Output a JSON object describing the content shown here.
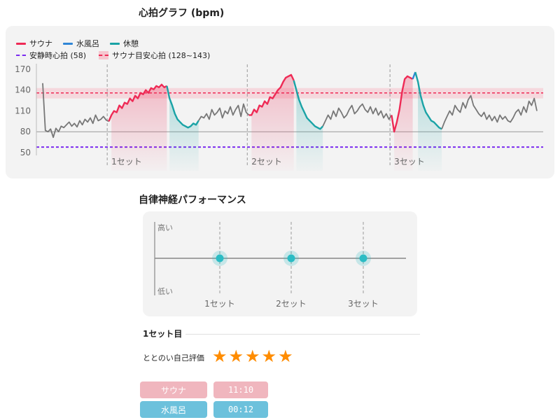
{
  "hr_chart_title": "心拍グラフ (bpm)",
  "ans_chart_title": "自律神経パフォーマンス",
  "colors": {
    "sauna": "#ee2a55",
    "cold_bath": "#2f86d6",
    "rest": "#1aa3a6",
    "resting_line": "#7b2cf0",
    "target_band": "#f6c6cf",
    "heart_gray": "#777777",
    "ans_marker": "#2bbcc4",
    "pill_sauna": "#f0b6be",
    "pill_cold": "#6cc1dc",
    "star": "#ff8c00"
  },
  "legend": {
    "sauna": "サウナ",
    "cold_bath": "水風呂",
    "rest": "休憩",
    "resting_hr": "安静時心拍 (58)",
    "target_hr": "サウナ目安心拍 (128~143)"
  },
  "chart_data": [
    {
      "type": "line",
      "title": "心拍グラフ (bpm)",
      "y_ticks": [
        170,
        140,
        110,
        80,
        50
      ],
      "ylim": [
        50,
        172
      ],
      "x_markers": [
        "1セット",
        "2セット",
        "3セット"
      ],
      "reference_lines": {
        "resting_hr": 58,
        "baseline": 80,
        "target_band": [
          128,
          143
        ],
        "target_line": 136
      },
      "legend_position": "top-left",
      "grid": false,
      "segments": [
        {
          "phase": "other",
          "values": [
            150,
            82,
            80,
            84,
            72,
            85,
            80,
            88,
            86,
            90,
            94,
            88,
            92,
            87,
            96,
            90,
            98,
            94,
            100,
            92,
            104,
            96,
            98,
            102,
            97,
            95
          ]
        },
        {
          "phase": "sauna",
          "set": 1,
          "values": [
            104,
            110,
            108,
            118,
            114,
            122,
            120,
            128,
            124,
            132,
            128,
            136,
            134,
            140,
            136,
            143,
            141,
            146,
            144,
            148,
            144,
            146
          ]
        },
        {
          "phase": "rest",
          "set": 1,
          "values": [
            128,
            118,
            106,
            98,
            94,
            90,
            88,
            86,
            88,
            92,
            90,
            96
          ]
        },
        {
          "phase": "other",
          "values": [
            102,
            100,
            106,
            98,
            112,
            104,
            108,
            114,
            100,
            110,
            106,
            116,
            104,
            112,
            118,
            102,
            120,
            108,
            104
          ]
        },
        {
          "phase": "sauna",
          "set": 2,
          "values": [
            104,
            112,
            108,
            118,
            116,
            124,
            120,
            130,
            128,
            134,
            140,
            144,
            152,
            158,
            160,
            162,
            154
          ]
        },
        {
          "phase": "rest",
          "set": 2,
          "values": [
            140,
            126,
            116,
            108,
            100,
            96,
            92,
            88,
            86,
            84,
            88
          ]
        },
        {
          "phase": "other",
          "values": [
            96,
            104,
            98,
            110,
            102,
            114,
            108,
            100,
            104,
            112,
            118,
            106,
            110,
            116,
            120,
            112,
            108,
            116,
            106,
            114,
            104,
            110,
            100,
            106,
            98,
            104
          ]
        },
        {
          "phase": "sauna",
          "set": 3,
          "values": [
            80,
            94,
            112,
            138,
            156,
            160,
            158,
            156
          ]
        },
        {
          "phase": "cold_bath",
          "set": 3,
          "values": [
            166
          ]
        },
        {
          "phase": "rest",
          "set": 3,
          "values": [
            152,
            132,
            118,
            108,
            102,
            96,
            94,
            90,
            86,
            84
          ]
        },
        {
          "phase": "other",
          "values": [
            94,
            102,
            110,
            104,
            118,
            112,
            108,
            122,
            114,
            126,
            132,
            118,
            112,
            106,
            102,
            108,
            98,
            104,
            96,
            102,
            94,
            104,
            98,
            102,
            96,
            94,
            100,
            108,
            112,
            104,
            116,
            108,
            124,
            118,
            128,
            110
          ]
        }
      ]
    },
    {
      "type": "scatter",
      "title": "自律神経パフォーマンス",
      "y_labels": [
        "高い",
        "低い"
      ],
      "x_labels": [
        "1セット",
        "2セット",
        "3セット"
      ],
      "values": [
        0.5,
        0.5,
        0.5
      ]
    }
  ],
  "set_detail": {
    "heading": "1セット目",
    "rating_label": "ととのい自己評価",
    "stars": 5,
    "sauna_label": "サウナ",
    "sauna_time": "11:10",
    "cold_label": "水風呂",
    "cold_time": "00:12"
  }
}
